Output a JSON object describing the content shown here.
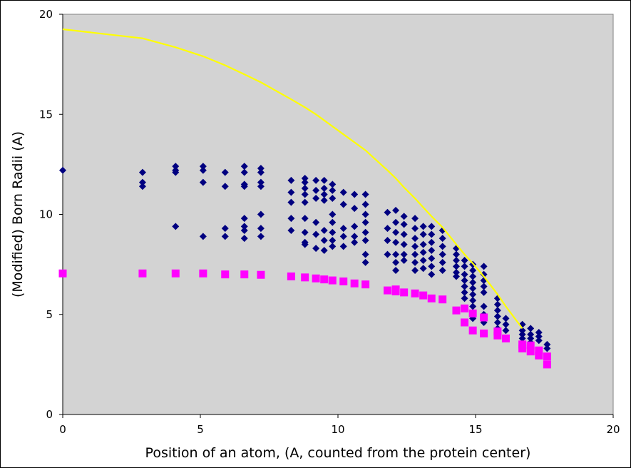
{
  "chart_data": {
    "type": "scatter",
    "title": "",
    "xlabel": "Position of an atom, (A, counted from the protein center)",
    "ylabel": "(Modified) Born Radii (A)",
    "xlim": [
      0,
      20
    ],
    "ylim": [
      0,
      20
    ],
    "xticks": [
      0,
      5,
      10,
      15,
      20
    ],
    "yticks": [
      0,
      5,
      10,
      15,
      20
    ],
    "grid": false,
    "legend": "none",
    "plot_background": "#d3d3d3",
    "series": [
      {
        "marker": "diamond",
        "color": "#000080",
        "points": [
          [
            0.0,
            12.2
          ],
          [
            2.9,
            12.1
          ],
          [
            2.9,
            11.6
          ],
          [
            2.9,
            11.4
          ],
          [
            4.1,
            12.4
          ],
          [
            4.1,
            12.2
          ],
          [
            4.1,
            12.1
          ],
          [
            4.1,
            9.4
          ],
          [
            5.1,
            12.4
          ],
          [
            5.1,
            12.2
          ],
          [
            5.1,
            11.6
          ],
          [
            5.1,
            8.9
          ],
          [
            5.9,
            12.1
          ],
          [
            5.9,
            11.4
          ],
          [
            5.9,
            9.3
          ],
          [
            5.9,
            8.9
          ],
          [
            6.6,
            12.4
          ],
          [
            6.6,
            12.1
          ],
          [
            6.6,
            11.5
          ],
          [
            6.6,
            11.4
          ],
          [
            6.6,
            9.8
          ],
          [
            6.6,
            9.4
          ],
          [
            6.6,
            9.2
          ],
          [
            6.6,
            8.8
          ],
          [
            7.2,
            12.3
          ],
          [
            7.2,
            12.1
          ],
          [
            7.2,
            11.6
          ],
          [
            7.2,
            11.4
          ],
          [
            7.2,
            10.0
          ],
          [
            7.2,
            9.3
          ],
          [
            7.2,
            8.9
          ],
          [
            8.3,
            11.7
          ],
          [
            8.3,
            11.1
          ],
          [
            8.3,
            10.6
          ],
          [
            8.3,
            9.8
          ],
          [
            8.3,
            9.2
          ],
          [
            8.8,
            11.8
          ],
          [
            8.8,
            11.6
          ],
          [
            8.8,
            11.3
          ],
          [
            8.8,
            11.0
          ],
          [
            8.8,
            10.6
          ],
          [
            8.8,
            9.8
          ],
          [
            8.8,
            9.1
          ],
          [
            8.8,
            8.6
          ],
          [
            8.8,
            8.5
          ],
          [
            9.2,
            11.7
          ],
          [
            9.2,
            11.2
          ],
          [
            9.2,
            10.8
          ],
          [
            9.2,
            9.6
          ],
          [
            9.2,
            9.0
          ],
          [
            9.2,
            8.3
          ],
          [
            9.5,
            11.7
          ],
          [
            9.5,
            11.3
          ],
          [
            9.5,
            11.0
          ],
          [
            9.5,
            10.7
          ],
          [
            9.5,
            9.2
          ],
          [
            9.5,
            8.7
          ],
          [
            9.5,
            8.2
          ],
          [
            9.8,
            11.5
          ],
          [
            9.8,
            11.2
          ],
          [
            9.8,
            10.8
          ],
          [
            9.8,
            10.0
          ],
          [
            9.8,
            9.6
          ],
          [
            9.8,
            9.1
          ],
          [
            9.8,
            8.7
          ],
          [
            9.8,
            8.4
          ],
          [
            10.2,
            11.1
          ],
          [
            10.2,
            10.5
          ],
          [
            10.2,
            9.3
          ],
          [
            10.2,
            8.9
          ],
          [
            10.2,
            8.4
          ],
          [
            10.6,
            11.0
          ],
          [
            10.6,
            10.3
          ],
          [
            10.6,
            9.4
          ],
          [
            10.6,
            8.9
          ],
          [
            10.6,
            8.6
          ],
          [
            11.0,
            11.0
          ],
          [
            11.0,
            10.5
          ],
          [
            11.0,
            10.0
          ],
          [
            11.0,
            9.6
          ],
          [
            11.0,
            9.1
          ],
          [
            11.0,
            8.7
          ],
          [
            11.0,
            8.0
          ],
          [
            11.0,
            7.6
          ],
          [
            11.8,
            10.1
          ],
          [
            11.8,
            9.3
          ],
          [
            11.8,
            8.7
          ],
          [
            11.8,
            8.0
          ],
          [
            12.1,
            10.2
          ],
          [
            12.1,
            9.6
          ],
          [
            12.1,
            9.1
          ],
          [
            12.1,
            8.6
          ],
          [
            12.1,
            8.0
          ],
          [
            12.1,
            7.6
          ],
          [
            12.1,
            7.2
          ],
          [
            12.4,
            9.9
          ],
          [
            12.4,
            9.5
          ],
          [
            12.4,
            9.0
          ],
          [
            12.4,
            8.5
          ],
          [
            12.4,
            8.0
          ],
          [
            12.4,
            7.7
          ],
          [
            12.8,
            9.8
          ],
          [
            12.8,
            9.3
          ],
          [
            12.8,
            8.8
          ],
          [
            12.8,
            8.4
          ],
          [
            12.8,
            8.0
          ],
          [
            12.8,
            7.6
          ],
          [
            12.8,
            7.2
          ],
          [
            13.1,
            9.4
          ],
          [
            13.1,
            9.0
          ],
          [
            13.1,
            8.5
          ],
          [
            13.1,
            8.1
          ],
          [
            13.1,
            7.7
          ],
          [
            13.1,
            7.3
          ],
          [
            13.4,
            9.4
          ],
          [
            13.4,
            9.0
          ],
          [
            13.4,
            8.6
          ],
          [
            13.4,
            8.2
          ],
          [
            13.4,
            7.8
          ],
          [
            13.4,
            7.4
          ],
          [
            13.4,
            7.0
          ],
          [
            13.8,
            9.2
          ],
          [
            13.8,
            8.8
          ],
          [
            13.8,
            8.4
          ],
          [
            13.8,
            8.0
          ],
          [
            13.8,
            7.6
          ],
          [
            13.8,
            7.2
          ],
          [
            14.3,
            8.3
          ],
          [
            14.3,
            8.0
          ],
          [
            14.3,
            7.7
          ],
          [
            14.3,
            7.4
          ],
          [
            14.3,
            7.1
          ],
          [
            14.3,
            6.9
          ],
          [
            14.6,
            7.7
          ],
          [
            14.6,
            7.4
          ],
          [
            14.6,
            7.0
          ],
          [
            14.6,
            6.7
          ],
          [
            14.6,
            6.4
          ],
          [
            14.6,
            6.1
          ],
          [
            14.6,
            5.8
          ],
          [
            14.9,
            7.5
          ],
          [
            14.9,
            7.2
          ],
          [
            14.9,
            6.9
          ],
          [
            14.9,
            6.6
          ],
          [
            14.9,
            6.3
          ],
          [
            14.9,
            6.0
          ],
          [
            14.9,
            5.7
          ],
          [
            14.9,
            5.4
          ],
          [
            14.9,
            5.1
          ],
          [
            14.9,
            4.8
          ],
          [
            15.3,
            7.4
          ],
          [
            15.3,
            7.0
          ],
          [
            15.3,
            6.7
          ],
          [
            15.3,
            6.4
          ],
          [
            15.3,
            6.1
          ],
          [
            15.3,
            5.4
          ],
          [
            15.3,
            5.0
          ],
          [
            15.3,
            4.6
          ],
          [
            15.8,
            5.8
          ],
          [
            15.8,
            5.5
          ],
          [
            15.8,
            5.2
          ],
          [
            15.8,
            4.9
          ],
          [
            15.8,
            4.6
          ],
          [
            15.8,
            4.3
          ],
          [
            15.8,
            4.0
          ],
          [
            16.1,
            4.8
          ],
          [
            16.1,
            4.5
          ],
          [
            16.1,
            4.2
          ],
          [
            16.7,
            4.5
          ],
          [
            16.7,
            4.2
          ],
          [
            16.7,
            4.0
          ],
          [
            16.7,
            3.8
          ],
          [
            17.0,
            4.3
          ],
          [
            17.0,
            4.0
          ],
          [
            17.0,
            3.8
          ],
          [
            17.0,
            3.6
          ],
          [
            17.3,
            4.1
          ],
          [
            17.3,
            3.9
          ],
          [
            17.3,
            3.7
          ],
          [
            17.6,
            3.5
          ],
          [
            17.6,
            3.3
          ]
        ]
      },
      {
        "marker": "square",
        "color": "#ff00ff",
        "points": [
          [
            0.0,
            7.05
          ],
          [
            2.9,
            7.05
          ],
          [
            4.1,
            7.05
          ],
          [
            5.1,
            7.05
          ],
          [
            5.9,
            7.0
          ],
          [
            6.6,
            7.0
          ],
          [
            7.2,
            6.98
          ],
          [
            8.3,
            6.9
          ],
          [
            8.8,
            6.85
          ],
          [
            9.2,
            6.8
          ],
          [
            9.5,
            6.75
          ],
          [
            9.8,
            6.7
          ],
          [
            10.2,
            6.65
          ],
          [
            10.6,
            6.55
          ],
          [
            11.0,
            6.5
          ],
          [
            11.8,
            6.2
          ],
          [
            12.1,
            6.25
          ],
          [
            12.1,
            6.15
          ],
          [
            12.4,
            6.1
          ],
          [
            12.8,
            6.05
          ],
          [
            13.1,
            5.95
          ],
          [
            13.4,
            5.8
          ],
          [
            13.8,
            5.75
          ],
          [
            14.3,
            5.2
          ],
          [
            14.6,
            5.3
          ],
          [
            14.6,
            4.6
          ],
          [
            14.9,
            5.05
          ],
          [
            14.9,
            4.2
          ],
          [
            15.3,
            4.85
          ],
          [
            15.3,
            4.05
          ],
          [
            15.8,
            4.15
          ],
          [
            15.8,
            3.95
          ],
          [
            16.1,
            3.8
          ],
          [
            16.7,
            3.5
          ],
          [
            16.7,
            3.3
          ],
          [
            17.0,
            3.45
          ],
          [
            17.0,
            3.15
          ],
          [
            17.3,
            3.2
          ],
          [
            17.3,
            2.95
          ],
          [
            17.6,
            2.9
          ],
          [
            17.6,
            2.5
          ]
        ]
      },
      {
        "marker": "line",
        "color": "#ffff00",
        "points": [
          [
            0.0,
            19.25
          ],
          [
            2.9,
            18.8
          ],
          [
            4.1,
            18.35
          ],
          [
            5.1,
            17.9
          ],
          [
            5.9,
            17.45
          ],
          [
            6.6,
            17.0
          ],
          [
            7.2,
            16.6
          ],
          [
            8.3,
            15.75
          ],
          [
            8.8,
            15.35
          ],
          [
            9.2,
            15.0
          ],
          [
            9.5,
            14.7
          ],
          [
            9.8,
            14.4
          ],
          [
            10.2,
            14.0
          ],
          [
            10.6,
            13.6
          ],
          [
            11.0,
            13.2
          ],
          [
            11.8,
            12.2
          ],
          [
            12.1,
            11.8
          ],
          [
            12.4,
            11.35
          ],
          [
            12.8,
            10.8
          ],
          [
            13.1,
            10.35
          ],
          [
            13.4,
            9.9
          ],
          [
            13.8,
            9.35
          ],
          [
            14.3,
            8.5
          ],
          [
            14.6,
            8.0
          ],
          [
            14.9,
            7.55
          ],
          [
            15.3,
            6.9
          ],
          [
            15.8,
            6.0
          ],
          [
            16.1,
            5.4
          ],
          [
            16.7,
            4.3
          ]
        ]
      }
    ]
  }
}
